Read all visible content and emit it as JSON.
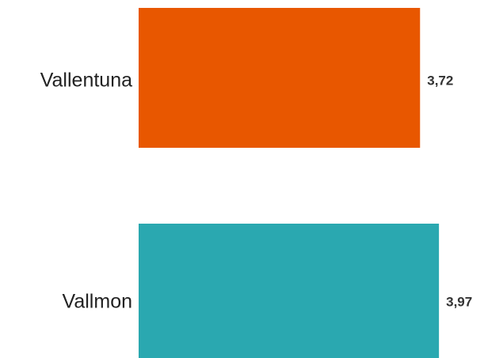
{
  "chart_data": {
    "type": "bar",
    "orientation": "horizontal",
    "categories": [
      "Vallentuna",
      "Vallmon"
    ],
    "values": [
      3.72,
      3.97
    ],
    "value_labels": [
      "3,72",
      "3,97"
    ],
    "colors": [
      "#e85700",
      "#2aa8b0"
    ],
    "title": "",
    "xlabel": "",
    "ylabel": "",
    "grid": false,
    "legend": "none"
  }
}
